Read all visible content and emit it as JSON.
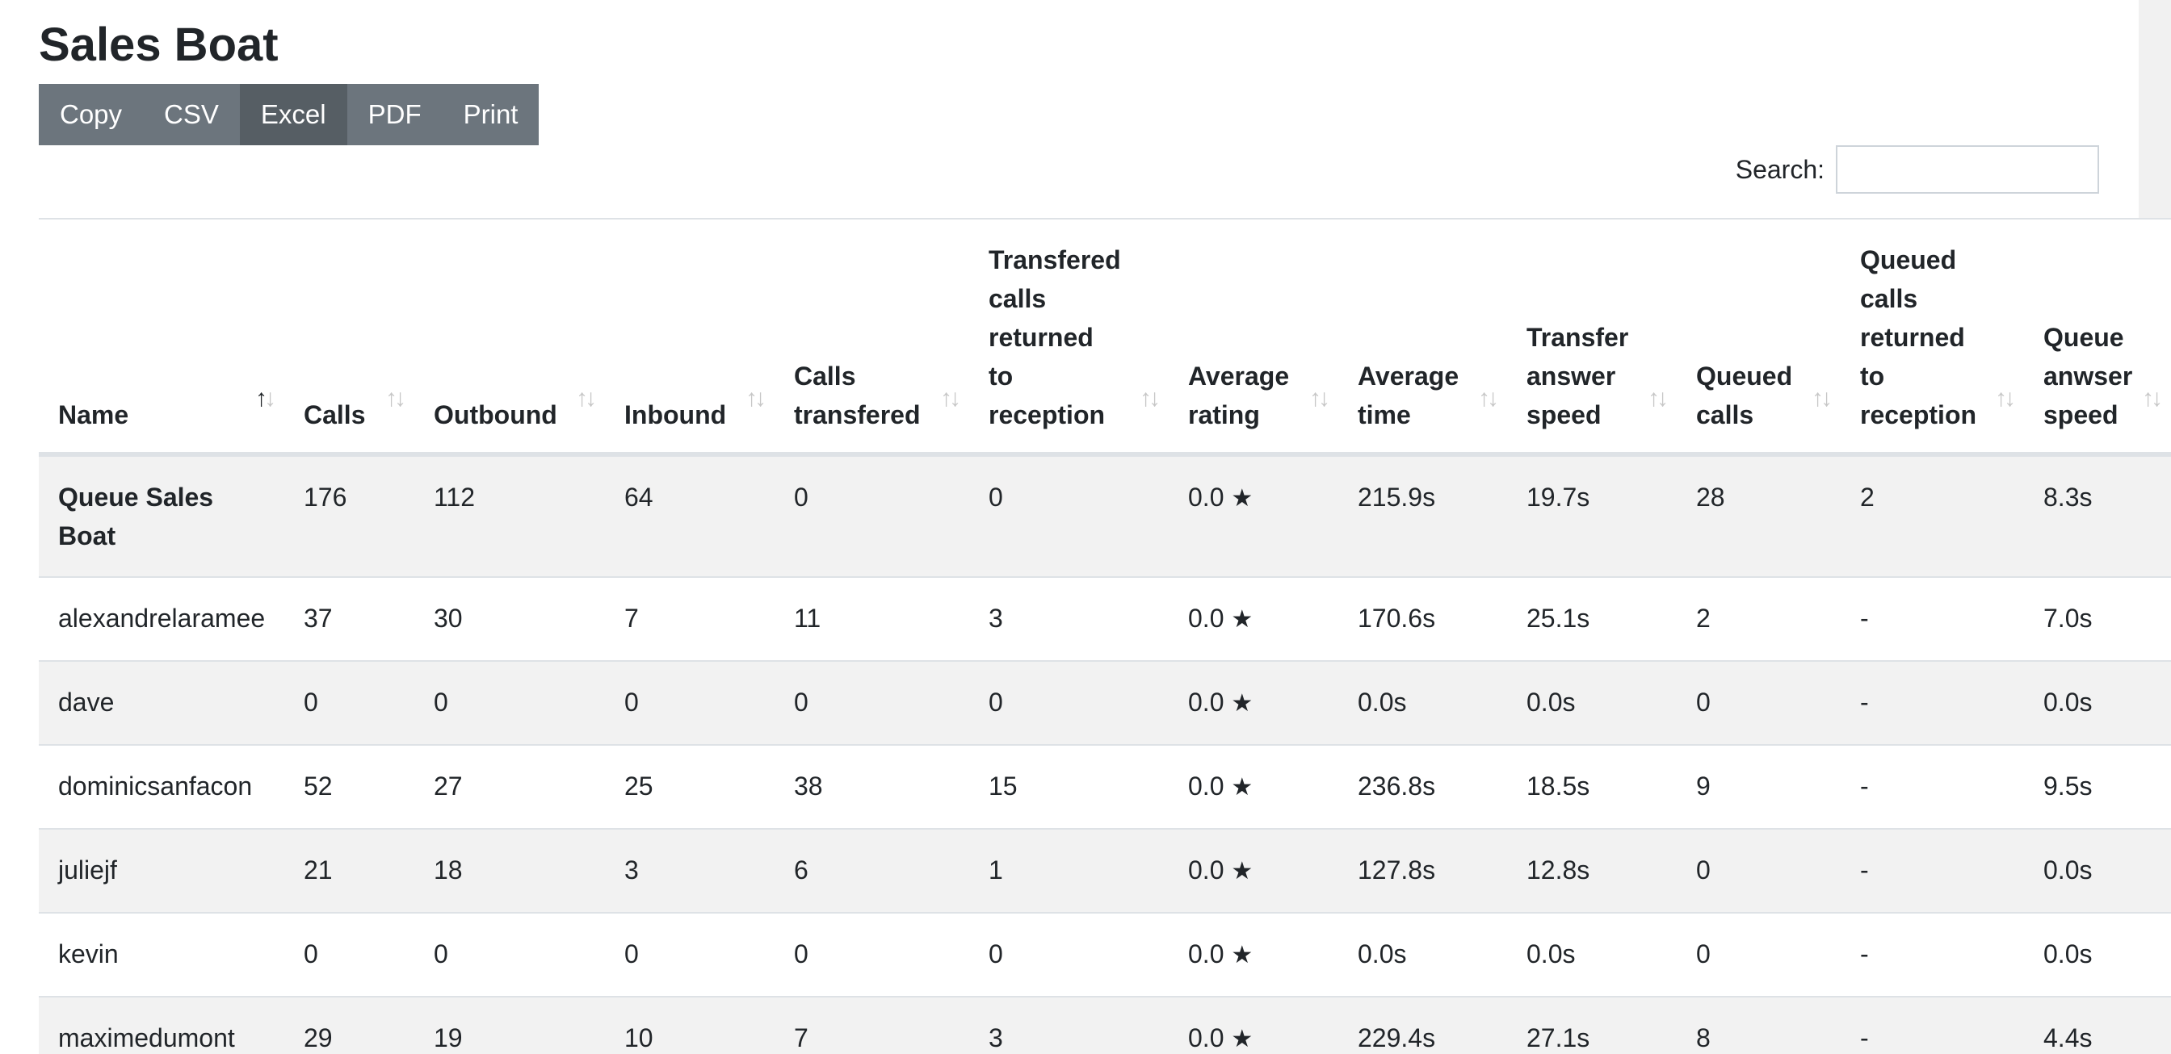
{
  "page": {
    "title": "Sales Boat"
  },
  "toolbar": {
    "buttons": [
      "Copy",
      "CSV",
      "Excel",
      "PDF",
      "Print"
    ],
    "active": "Excel"
  },
  "search": {
    "label": "Search:",
    "value": ""
  },
  "table": {
    "columns": [
      "Name",
      "Calls",
      "Outbound",
      "Inbound",
      "Calls transfered",
      "Transfered calls returned to reception",
      "Average rating",
      "Average time",
      "Transfer answer speed",
      "Queued calls",
      "Queued calls returned to reception",
      "Queue anwser speed"
    ],
    "sort_icon": "↑↓",
    "sorted_column": "Name",
    "star_icon": "★",
    "rows": [
      [
        "Queue Sales Boat",
        "176",
        "112",
        "64",
        "0",
        "0",
        "0.0",
        "215.9s",
        "19.7s",
        "28",
        "2",
        "8.3s"
      ],
      [
        "alexandrelaramee",
        "37",
        "30",
        "7",
        "11",
        "3",
        "0.0",
        "170.6s",
        "25.1s",
        "2",
        "-",
        "7.0s"
      ],
      [
        "dave",
        "0",
        "0",
        "0",
        "0",
        "0",
        "0.0",
        "0.0s",
        "0.0s",
        "0",
        "-",
        "0.0s"
      ],
      [
        "dominicsanfacon",
        "52",
        "27",
        "25",
        "38",
        "15",
        "0.0",
        "236.8s",
        "18.5s",
        "9",
        "-",
        "9.5s"
      ],
      [
        "juliejf",
        "21",
        "18",
        "3",
        "6",
        "1",
        "0.0",
        "127.8s",
        "12.8s",
        "0",
        "-",
        "0.0s"
      ],
      [
        "kevin",
        "0",
        "0",
        "0",
        "0",
        "0",
        "0.0",
        "0.0s",
        "0.0s",
        "0",
        "-",
        "0.0s"
      ],
      [
        "maximedumont",
        "29",
        "19",
        "10",
        "7",
        "3",
        "0.0",
        "229.4s",
        "27.1s",
        "8",
        "-",
        "4.4s"
      ]
    ]
  },
  "colors": {
    "button": "#6c757d",
    "button_active": "#565e64",
    "stripe": "#f2f2f2",
    "text": "#212529"
  }
}
